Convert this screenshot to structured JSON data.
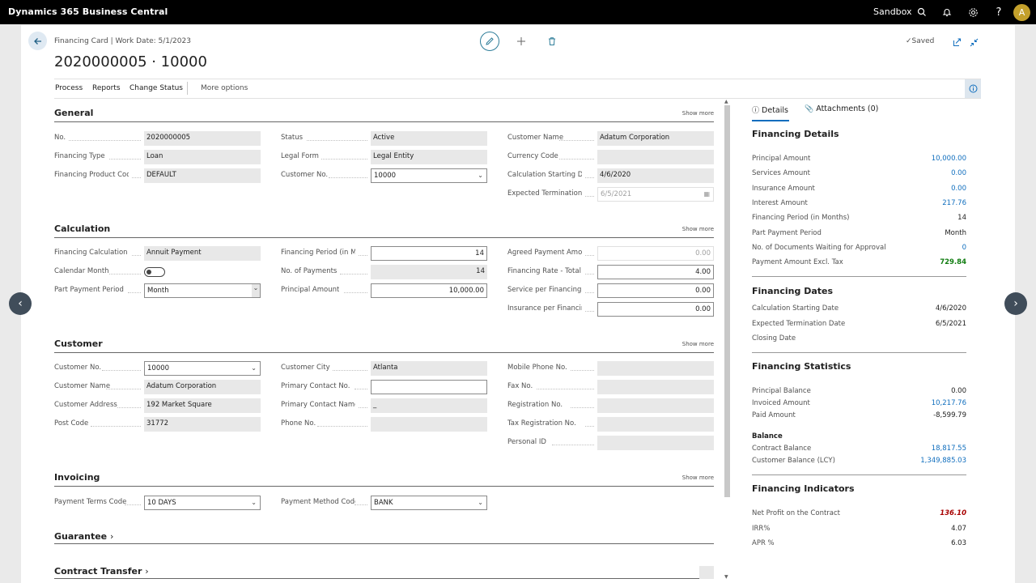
{
  "app": {
    "title": "Dynamics 365 Business Central",
    "environment": "Sandbox",
    "avatar_initial": "A"
  },
  "page": {
    "breadcrumb": "Financing Card | Work Date: 5/1/2023",
    "title": "2020000005 · 10000",
    "saved": "Saved"
  },
  "menu": {
    "items": [
      "Process",
      "Reports",
      "Change Status",
      "More options"
    ]
  },
  "general": {
    "title": "General",
    "show_more": "Show more",
    "col1": [
      {
        "label": "No.",
        "value": "2020000005",
        "type": "readonly"
      },
      {
        "label": "Financing Type",
        "value": "Loan",
        "type": "readonly"
      },
      {
        "label": "Financing Product Code",
        "value": "DEFAULT",
        "type": "readonly"
      }
    ],
    "col2": [
      {
        "label": "Status",
        "value": "Active",
        "type": "readonly"
      },
      {
        "label": "Legal Form",
        "value": "Legal Entity",
        "type": "readonly"
      },
      {
        "label": "Customer No.",
        "value": "10000",
        "type": "dropdown"
      }
    ],
    "col3": [
      {
        "label": "Customer Name",
        "value": "Adatum Corporation",
        "type": "readonly"
      },
      {
        "label": "Currency Code",
        "value": "",
        "type": "readonly"
      },
      {
        "label": "Calculation Starting Date",
        "value": "4/6/2020",
        "type": "readonly"
      },
      {
        "label": "Expected Termination ...",
        "value": "6/5/2021",
        "type": "disabled-date"
      }
    ]
  },
  "calculation": {
    "title": "Calculation",
    "show_more": "Show more",
    "col1": [
      {
        "label": "Financing Calculation ...",
        "value": "Annuit Payment",
        "type": "readonly"
      },
      {
        "label": "Calendar Month",
        "value": "",
        "type": "toggle"
      },
      {
        "label": "Part Payment Period",
        "value": "Month",
        "type": "dropdown"
      }
    ],
    "col2": [
      {
        "label": "Financing Period (in M...",
        "value": "14",
        "type": "input-num"
      },
      {
        "label": "No. of Payments",
        "value": "14",
        "type": "readonly-num"
      },
      {
        "label": "Principal Amount",
        "value": "10,000.00",
        "type": "input-num"
      }
    ],
    "col3": [
      {
        "label": "Agreed Payment Amou...",
        "value": "0.00",
        "type": "disabled-num"
      },
      {
        "label": "Financing Rate - Total",
        "value": "4.00",
        "type": "input-num"
      },
      {
        "label": "Service per Financing P...",
        "value": "0.00",
        "type": "input-num"
      },
      {
        "label": "Insurance per Financin...",
        "value": "0.00",
        "type": "input-num"
      }
    ]
  },
  "customer": {
    "title": "Customer",
    "show_more": "Show more",
    "col1": [
      {
        "label": "Customer No.",
        "value": "10000",
        "type": "dropdown"
      },
      {
        "label": "Customer Name",
        "value": "Adatum Corporation",
        "type": "readonly"
      },
      {
        "label": "Customer Address",
        "value": "192 Market Square",
        "type": "readonly"
      },
      {
        "label": "Post Code",
        "value": "31772",
        "type": "readonly"
      }
    ],
    "col2": [
      {
        "label": "Customer City",
        "value": "Atlanta",
        "type": "readonly"
      },
      {
        "label": "Primary Contact No.",
        "value": "",
        "type": "input"
      },
      {
        "label": "Primary Contact Name",
        "value": "_",
        "type": "readonly"
      },
      {
        "label": "Phone No.",
        "value": "",
        "type": "readonly"
      }
    ],
    "col3": [
      {
        "label": "Mobile Phone No.",
        "value": "",
        "type": "readonly"
      },
      {
        "label": "Fax No.",
        "value": "",
        "type": "readonly"
      },
      {
        "label": "Registration No.",
        "value": "",
        "type": "readonly"
      },
      {
        "label": "Tax Registration No.",
        "value": "",
        "type": "readonly"
      },
      {
        "label": "Personal ID",
        "value": "",
        "type": "readonly"
      }
    ]
  },
  "invoicing": {
    "title": "Invoicing",
    "show_more": "Show more",
    "col1": [
      {
        "label": "Payment Terms Code",
        "value": "10 DAYS",
        "type": "dropdown"
      }
    ],
    "col2": [
      {
        "label": "Payment Method Code",
        "value": "BANK",
        "type": "dropdown"
      }
    ]
  },
  "guarantee": {
    "title": "Guarantee"
  },
  "contract_transfer": {
    "title": "Contract Transfer"
  },
  "factbox": {
    "tabs": {
      "details": "Details",
      "attachments": "Attachments (0)"
    },
    "financing_details": {
      "title": "Financing Details",
      "rows": [
        {
          "label": "Principal Amount",
          "value": "10,000.00",
          "style": "link"
        },
        {
          "label": "Services Amount",
          "value": "0.00",
          "style": "link"
        },
        {
          "label": "Insurance Amount",
          "value": "0.00",
          "style": "link"
        },
        {
          "label": "Interest Amount",
          "value": "217.76",
          "style": "link"
        },
        {
          "label": "Financing Period (in Months)",
          "value": "14",
          "style": "plain"
        },
        {
          "label": "Part Payment Period",
          "value": "Month",
          "style": "plain"
        },
        {
          "label": "No. of Documents Waiting for Approval",
          "value": "0",
          "style": "link"
        },
        {
          "label": "Payment Amount Excl. Tax",
          "value": "729.84",
          "style": "green"
        }
      ]
    },
    "financing_dates": {
      "title": "Financing Dates",
      "rows": [
        {
          "label": "Calculation Starting Date",
          "value": "4/6/2020",
          "style": "plain"
        },
        {
          "label": "Expected Termination Date",
          "value": "6/5/2021",
          "style": "plain"
        },
        {
          "label": "Closing Date",
          "value": "",
          "style": "plain"
        }
      ]
    },
    "financing_statistics": {
      "title": "Financing Statistics",
      "rows": [
        {
          "label": "Principal Balance",
          "value": "0.00",
          "style": "plain"
        },
        {
          "label": "Invoiced Amount",
          "value": "10,217.76",
          "style": "link"
        },
        {
          "label": "Paid Amount",
          "value": "-8,599.79",
          "style": "plain"
        }
      ],
      "balance_title": "Balance",
      "balance_rows": [
        {
          "label": "Contract Balance",
          "value": "18,817.55",
          "style": "link"
        },
        {
          "label": "Customer Balance (LCY)",
          "value": "1,349,885.03",
          "style": "link"
        }
      ]
    },
    "financing_indicators": {
      "title": "Financing Indicators",
      "rows": [
        {
          "label": "Net Profit on the Contract",
          "value": "136.10",
          "style": "red"
        },
        {
          "label": "IRR%",
          "value": "4.07",
          "style": "plain"
        },
        {
          "label": "APR %",
          "value": "6.03",
          "style": "plain"
        }
      ]
    }
  },
  "colors": {
    "accent": "#106ebe",
    "green": "#107c10",
    "red": "#a80000",
    "topbar": "#000000"
  }
}
